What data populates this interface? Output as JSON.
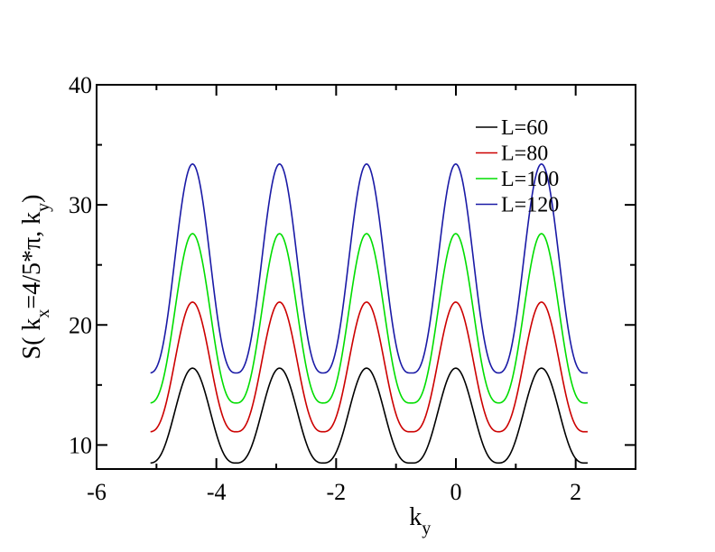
{
  "chart_data": {
    "type": "line",
    "title": "",
    "xlabel": {
      "main": "k",
      "sub": "y"
    },
    "ylabel": {
      "p1": "S( k",
      "sub1": "x",
      "p2": "=4/5*π, k",
      "sub2": "y",
      "p3": ")"
    },
    "xlim": [
      -6,
      3
    ],
    "ylim": [
      8,
      40
    ],
    "x_ticks": [
      -6,
      -4,
      -2,
      0,
      2
    ],
    "x_tick_labels": [
      "-6",
      "-4",
      "-2",
      "0",
      "2"
    ],
    "y_ticks": [
      10,
      20,
      30,
      40
    ],
    "y_tick_labels": [
      "10",
      "20",
      "30",
      "40"
    ],
    "legend_position": "top-right",
    "grid": false,
    "x_range": [
      -5.1,
      2.2
    ],
    "peak_positions": [
      -4.398,
      -2.945,
      -1.492,
      -0.003,
      1.429
    ],
    "series": [
      {
        "name": "L=60",
        "color": "#000000",
        "min": 8.5,
        "max": 16.4
      },
      {
        "name": "L=80",
        "color": "#cc0000",
        "min": 11.1,
        "max": 21.9
      },
      {
        "name": "L=100",
        "color": "#00dd00",
        "min": 13.5,
        "max": 27.6
      },
      {
        "name": "L=120",
        "color": "#1a1aa6",
        "min": 16.0,
        "max": 33.4
      }
    ]
  }
}
